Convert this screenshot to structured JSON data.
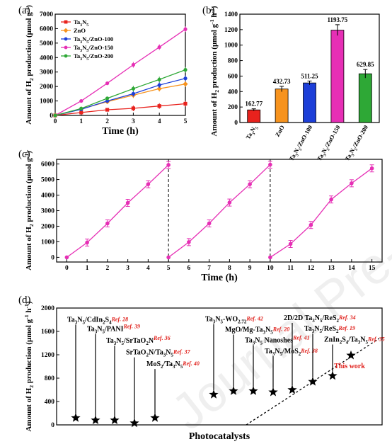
{
  "watermark": "Journal Pre-proofs",
  "colors": {
    "red": "#e8221d",
    "orange": "#f7931e",
    "blue": "#1d3fd8",
    "magenta": "#e62fb5",
    "green": "#2ea836",
    "black": "#000000",
    "accent_red": "#e0201b"
  },
  "chart_data": [
    {
      "panel": "(a)",
      "type": "line",
      "xlabel": "Time (h)",
      "ylabel": "Amount of H",
      "ylabel_sub": "2",
      "ylabel_rest": " production (μmol g",
      "ylabel_sup": "-1",
      "ylabel_end": ")",
      "xlim": [
        0,
        5
      ],
      "ylim": [
        0,
        7000
      ],
      "xticks": [
        "0",
        "1",
        "2",
        "3",
        "4",
        "5"
      ],
      "yticks": [
        "0",
        "1000",
        "2000",
        "3000",
        "4000",
        "5000",
        "6000",
        "7000"
      ],
      "legend_position": "top-left",
      "x": [
        0,
        1,
        2,
        3,
        4,
        5
      ],
      "series": [
        {
          "name": "Ta3N5",
          "name_base": "Ta",
          "name_parts": [
            [
              "Ta",
              ""
            ],
            [
              "3",
              "sub"
            ],
            [
              "N",
              ""
            ],
            [
              "5",
              "sub"
            ]
          ],
          "color": "#e8221d",
          "marker": "square",
          "values": [
            0,
            200,
            390,
            490,
            650,
            810
          ]
        },
        {
          "name": "ZnO",
          "name_parts": [
            [
              "ZnO",
              ""
            ]
          ],
          "color": "#f7931e",
          "marker": "diamond",
          "values": [
            0,
            450,
            950,
            1400,
            1850,
            2170
          ]
        },
        {
          "name": "Ta3N5/ZnO-100",
          "name_parts": [
            [
              "Ta",
              ""
            ],
            [
              "3",
              "sub"
            ],
            [
              "N",
              ""
            ],
            [
              "5",
              "sub"
            ],
            [
              "/ZnO-100",
              ""
            ]
          ],
          "color": "#1d3fd8",
          "marker": "circle",
          "values": [
            0,
            420,
            1000,
            1500,
            2100,
            2560
          ]
        },
        {
          "name": "Ta3N5/ZnO-150",
          "name_parts": [
            [
              "Ta",
              ""
            ],
            [
              "3",
              "sub"
            ],
            [
              "N",
              ""
            ],
            [
              "5",
              "sub"
            ],
            [
              "/ZnO-150",
              ""
            ]
          ],
          "color": "#e62fb5",
          "marker": "circle",
          "values": [
            0,
            1000,
            2220,
            3500,
            4720,
            5960
          ]
        },
        {
          "name": "Ta3N5/ZnO-200",
          "name_parts": [
            [
              "Ta",
              ""
            ],
            [
              "3",
              "sub"
            ],
            [
              "N",
              ""
            ],
            [
              "5",
              "sub"
            ],
            [
              "/ZnO-200",
              ""
            ]
          ],
          "color": "#2ea836",
          "marker": "circle",
          "values": [
            0,
            480,
            1180,
            1850,
            2480,
            3150
          ]
        }
      ]
    },
    {
      "panel": "(b)",
      "type": "bar",
      "ylabel": "Amount of H",
      "ylabel_sub": "2",
      "ylabel_rest": " production (μmol g",
      "ylabel_sup": "-1",
      "ylabel_mid": " h",
      "ylabel_sup2": "-1",
      "ylabel_end": ")",
      "ylim": [
        0,
        1400
      ],
      "yticks": [
        "0",
        "200",
        "400",
        "600",
        "800",
        "1000",
        "1200",
        "1400"
      ],
      "categories": [
        "Ta3N5",
        "ZnO",
        "Ta3N5/ZnO-100",
        "Ta3N5/ZnO-150",
        "Ta3N5/ZnO-200"
      ],
      "category_parts": [
        [
          [
            "Ta",
            ""
          ],
          [
            "3",
            "sub"
          ],
          [
            "N",
            ""
          ],
          [
            "5",
            "sub"
          ]
        ],
        [
          [
            "ZnO",
            ""
          ]
        ],
        [
          [
            "Ta",
            ""
          ],
          [
            "3",
            "sub"
          ],
          [
            "N",
            ""
          ],
          [
            "5",
            "sub"
          ],
          [
            "/ZnO-100",
            ""
          ]
        ],
        [
          [
            "Ta",
            ""
          ],
          [
            "3",
            "sub"
          ],
          [
            "N",
            ""
          ],
          [
            "5",
            "sub"
          ],
          [
            "/ZnO-150",
            ""
          ]
        ],
        [
          [
            "Ta",
            ""
          ],
          [
            "3",
            "sub"
          ],
          [
            "N",
            ""
          ],
          [
            "5",
            "sub"
          ],
          [
            "/ZnO-200",
            ""
          ]
        ]
      ],
      "values": [
        162.77,
        432.73,
        511.25,
        1193.75,
        629.85
      ],
      "value_labels": [
        "162.77",
        "432.73",
        "511.25",
        "1193.75",
        "629.85"
      ],
      "errors": [
        14,
        35,
        25,
        70,
        55
      ],
      "colors": [
        "#e8221d",
        "#f7931e",
        "#1d3fd8",
        "#e62fb5",
        "#2ea836"
      ]
    },
    {
      "panel": "(c)",
      "type": "line",
      "xlabel": "Time (h)",
      "ylabel": "Amount of H",
      "ylabel_sub": "2",
      "ylabel_rest": " production (μmol g",
      "ylabel_sup": "-1",
      "ylabel_end": ")",
      "xlim": [
        -0.5,
        15.5
      ],
      "ylim": [
        -300,
        6300
      ],
      "xticks": [
        "0",
        "1",
        "2",
        "3",
        "4",
        "5",
        "6",
        "7",
        "8",
        "9",
        "10",
        "11",
        "12",
        "13",
        "14",
        "15"
      ],
      "yticks": [
        "0",
        "1000",
        "2000",
        "3000",
        "4000",
        "5000",
        "6000"
      ],
      "cycle_dividers": [
        5,
        10
      ],
      "color": "#e62fb5",
      "cycles": [
        {
          "x": [
            0,
            1,
            2,
            3,
            4,
            5
          ],
          "values": [
            0,
            950,
            2180,
            3500,
            4700,
            5940
          ]
        },
        {
          "x": [
            5,
            6,
            7,
            8,
            9,
            10
          ],
          "values": [
            0,
            980,
            2180,
            3520,
            4700,
            5960
          ]
        },
        {
          "x": [
            10,
            11,
            12,
            13,
            14,
            15
          ],
          "values": [
            0,
            860,
            2080,
            3720,
            4760,
            5720
          ]
        }
      ]
    },
    {
      "panel": "(d)",
      "type": "scatter",
      "xlabel": "Photocatalysts",
      "ylabel": "Amount of H",
      "ylabel_sub": "2",
      "ylabel_rest": " production (μmol g",
      "ylabel_sup": "-1",
      "ylabel_mid": " h",
      "ylabel_sup2": "-1",
      "ylabel_end": ")",
      "ylim": [
        0,
        2000
      ],
      "yticks": [
        "0",
        "400",
        "800",
        "1200",
        "1600",
        "2000"
      ],
      "points": [
        {
          "idx": 0,
          "value": 120,
          "parts": [
            [
              "Ta",
              ""
            ],
            [
              "3",
              "sub"
            ],
            [
              "N",
              ""
            ],
            [
              "5",
              "sub"
            ],
            [
              "/CdIn",
              ""
            ],
            [
              "2",
              "sub"
            ],
            [
              "S",
              ""
            ],
            [
              "4",
              "sub"
            ]
          ],
          "ref": "Ref. 28",
          "label_value": 1740
        },
        {
          "idx": 1,
          "value": 80,
          "parts": [
            [
              "Ta",
              ""
            ],
            [
              "3",
              "sub"
            ],
            [
              "N",
              ""
            ],
            [
              "5",
              "sub"
            ],
            [
              "/PANI",
              ""
            ]
          ],
          "ref": "Ref. 39",
          "label_value": 1580
        },
        {
          "idx": 2,
          "value": 80,
          "parts": [
            [
              "Ta",
              ""
            ],
            [
              "3",
              "sub"
            ],
            [
              "N",
              ""
            ],
            [
              "5",
              "sub"
            ],
            [
              "/SrTaO",
              ""
            ],
            [
              "2",
              "sub"
            ],
            [
              "N",
              ""
            ]
          ],
          "ref": "Ref. 36",
          "label_value": 1380
        },
        {
          "idx": 3,
          "value": 30,
          "parts": [
            [
              "SrTaO",
              ""
            ],
            [
              "2",
              "sub"
            ],
            [
              "N/Ta",
              ""
            ],
            [
              "3",
              "sub"
            ],
            [
              "N",
              ""
            ],
            [
              "5",
              "sub"
            ]
          ],
          "ref": "Ref. 37",
          "label_value": 1180
        },
        {
          "idx": 4,
          "value": 120,
          "parts": [
            [
              "MoS",
              ""
            ],
            [
              "2",
              "sub"
            ],
            [
              "/Ta",
              ""
            ],
            [
              "3",
              "sub"
            ],
            [
              "N",
              ""
            ],
            [
              "5",
              "sub"
            ]
          ],
          "ref": "Ref. 40",
          "label_value": 980
        },
        {
          "idx": 5,
          "value": 520,
          "parts": [
            [
              "Ta",
              ""
            ],
            [
              "3",
              "sub"
            ],
            [
              "N",
              ""
            ],
            [
              "5",
              "sub"
            ],
            [
              "-WO",
              ""
            ],
            [
              "2.72",
              "sub"
            ]
          ],
          "ref": "Ref. 42",
          "label_value": 1750
        },
        {
          "idx": 6,
          "value": 580,
          "parts": [
            [
              "MgO/Mg-Ta",
              ""
            ],
            [
              "3",
              "sub"
            ],
            [
              "N",
              ""
            ],
            [
              "5",
              "sub"
            ]
          ],
          "ref": "Ref. 20",
          "label_value": 1570
        },
        {
          "idx": 7,
          "value": 580,
          "parts": [
            [
              "Ta",
              ""
            ],
            [
              "3",
              "sub"
            ],
            [
              "N",
              ""
            ],
            [
              "5",
              "sub"
            ],
            [
              " Nanoshes",
              ""
            ]
          ],
          "ref": "Ref. 41",
          "label_value": 1390
        },
        {
          "idx": 8,
          "value": 560,
          "parts": [
            [
              "Ta",
              ""
            ],
            [
              "3",
              "sub"
            ],
            [
              "N",
              ""
            ],
            [
              "5",
              "sub"
            ],
            [
              "/MoS",
              ""
            ],
            [
              "2",
              "sub"
            ]
          ],
          "ref": "Ref. 38",
          "label_value": 1200
        },
        {
          "idx": 9,
          "value": 600,
          "parts": [
            [
              "2D/2D Ta",
              ""
            ],
            [
              "3",
              "sub"
            ],
            [
              "N",
              ""
            ],
            [
              "5",
              "sub"
            ],
            [
              "/ReS",
              ""
            ],
            [
              "2",
              "sub"
            ]
          ],
          "ref": "Ref. 34",
          "label_value": 1770
        },
        {
          "idx": 10,
          "value": 740,
          "parts": [
            [
              "Ta",
              ""
            ],
            [
              "3",
              "sub"
            ],
            [
              "N",
              ""
            ],
            [
              "5",
              "sub"
            ],
            [
              "/ReS",
              ""
            ],
            [
              "2",
              "sub"
            ]
          ],
          "ref": "Ref. 19",
          "label_value": 1590
        },
        {
          "idx": 11,
          "value": 840,
          "parts": [
            [
              "ZnIn",
              ""
            ],
            [
              "2",
              "sub"
            ],
            [
              "S",
              ""
            ],
            [
              "4",
              "sub"
            ],
            [
              "/Ta",
              ""
            ],
            [
              "3",
              "sub"
            ],
            [
              "N",
              ""
            ],
            [
              "5",
              "sub"
            ]
          ],
          "ref": "Ref. 35",
          "label_value": 1400
        },
        {
          "idx": 12,
          "value": 1190,
          "parts": [],
          "ref": "",
          "label_value": 1190,
          "highlight": "This work"
        }
      ],
      "trend_line": {
        "from": [
          8.4,
          0
        ],
        "to": [
          13.8,
          1480
        ]
      }
    }
  ]
}
